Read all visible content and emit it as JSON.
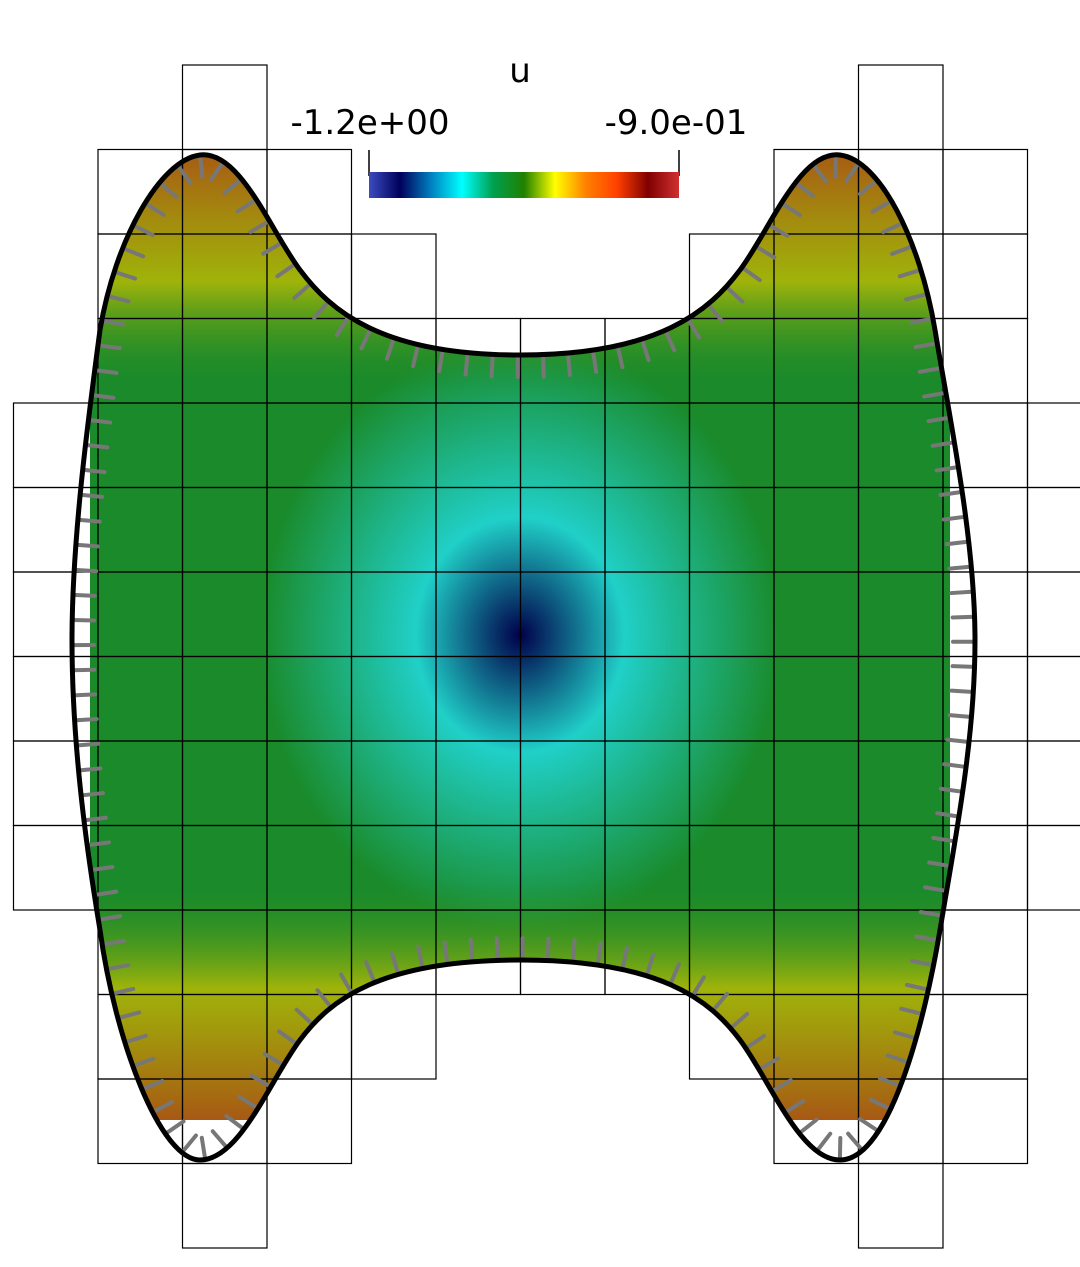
{
  "colorbar": {
    "title": "u",
    "min_label": "-1.2e+00",
    "max_label": "-9.0e-01",
    "colormap_name": "jet-like",
    "colors": [
      "#3b4cc0",
      "#00005a",
      "#0080c0",
      "#00ffff",
      "#00a050",
      "#208000",
      "#ffff00",
      "#ff8000",
      "#ff4000",
      "#800000",
      "#d03030"
    ]
  },
  "field": {
    "min_value": -1.2,
    "max_value": -0.9,
    "center_color": "#00004a",
    "ring_color": "#20d0c8",
    "mid_color": "#1a8a2a",
    "edge_color": "#d47a00",
    "boundary_color": "#c05010"
  },
  "mesh": {
    "cell_line_color": "#000000",
    "boundary_curve_color": "#000000",
    "normal_spoke_color": "#777777"
  }
}
